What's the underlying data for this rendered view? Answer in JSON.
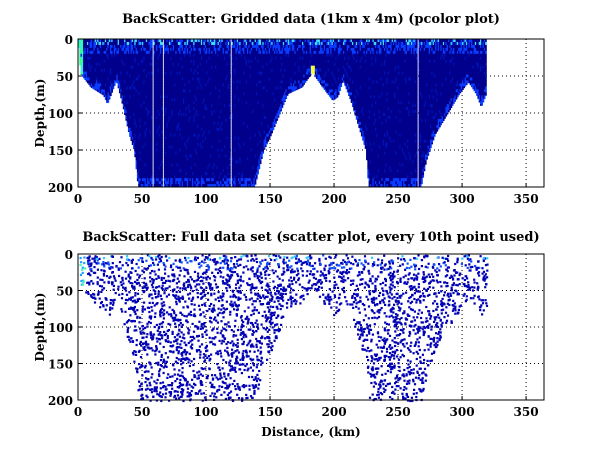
{
  "chart_data": [
    {
      "type": "heatmap",
      "title": "BackScatter: Gridded data (1km x 4m) (pcolor plot)",
      "xlabel": "",
      "ylabel": "Depth,(m)",
      "xlim": [
        0,
        364
      ],
      "ylim": [
        200,
        0
      ],
      "xticks": [
        "0",
        "50",
        "100",
        "150",
        "200",
        "250",
        "300",
        "350"
      ],
      "yticks": [
        "0",
        "50",
        "100",
        "150",
        "200"
      ],
      "grid": true,
      "bottom_profile": [
        [
          0,
          0
        ],
        [
          2,
          47
        ],
        [
          6,
          56
        ],
        [
          10,
          65
        ],
        [
          20,
          76
        ],
        [
          23,
          88
        ],
        [
          30,
          56
        ],
        [
          34,
          83
        ],
        [
          40,
          129
        ],
        [
          44,
          151
        ],
        [
          47,
          200
        ],
        [
          138,
          200
        ],
        [
          145,
          151
        ],
        [
          151,
          129
        ],
        [
          164,
          74
        ],
        [
          175,
          65
        ],
        [
          183,
          45
        ],
        [
          191,
          65
        ],
        [
          199,
          83
        ],
        [
          203,
          78
        ],
        [
          207,
          56
        ],
        [
          213,
          83
        ],
        [
          225,
          151
        ],
        [
          227,
          200
        ],
        [
          268,
          200
        ],
        [
          272,
          165
        ],
        [
          279,
          129
        ],
        [
          298,
          74
        ],
        [
          305,
          58
        ],
        [
          311,
          74
        ],
        [
          315,
          92
        ],
        [
          319,
          74
        ],
        [
          319,
          0
        ]
      ],
      "data_gaps_km": [
        58,
        66,
        119,
        265
      ],
      "colors": {
        "low": "#00008c",
        "mid": "#0a3cff",
        "high": "#3fe0ff",
        "peak": "#ffff30"
      }
    },
    {
      "type": "scatter",
      "title": "BackScatter: Full data set (scatter plot, every 10th point used)",
      "xlabel": "Distance, (km)",
      "ylabel": "Depth,(m)",
      "xlim": [
        0,
        364
      ],
      "ylim": [
        200,
        0
      ],
      "xticks": [
        "0",
        "50",
        "100",
        "150",
        "200",
        "250",
        "300",
        "350"
      ],
      "yticks": [
        "0",
        "50",
        "100",
        "150",
        "200"
      ],
      "grid": true,
      "point_count_approx": 3200
    }
  ]
}
